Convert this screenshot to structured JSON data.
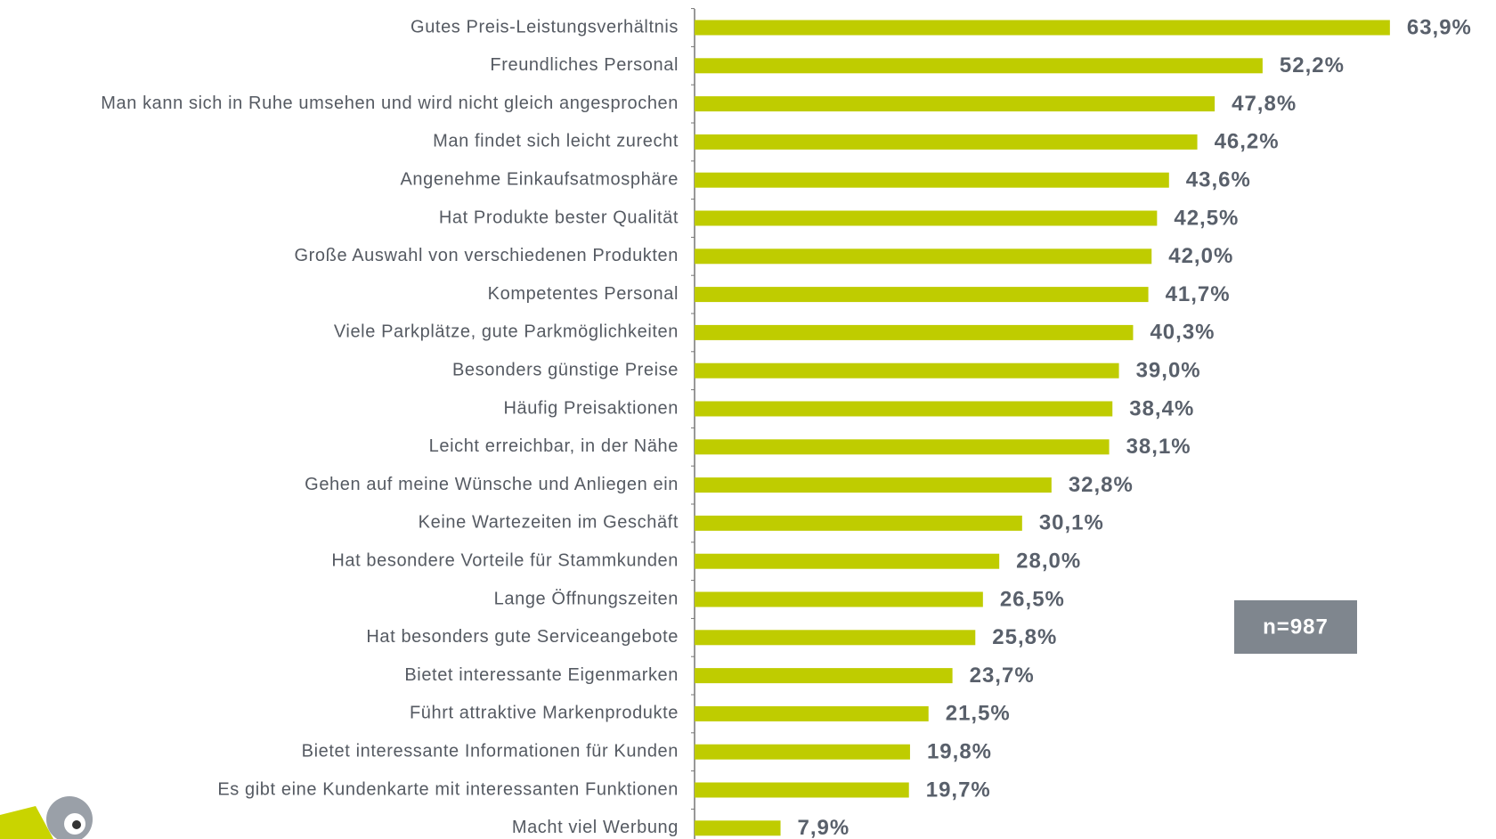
{
  "chart_data": {
    "type": "bar",
    "orientation": "horizontal",
    "color": "#bfcc00",
    "categories": [
      "Gutes Preis-Leistungsverhältnis",
      "Freundliches Personal",
      "Man kann sich in Ruhe umsehen und wird nicht gleich angesprochen",
      "Man findet sich leicht zurecht",
      "Angenehme Einkaufsatmosphäre",
      "Hat Produkte bester Qualität",
      "Große Auswahl von verschiedenen Produkten",
      "Kompetentes Personal",
      "Viele Parkplätze, gute Parkmöglichkeiten",
      "Besonders günstige Preise",
      "Häufig Preisaktionen",
      "Leicht erreichbar, in der Nähe",
      "Gehen auf meine Wünsche und Anliegen ein",
      "Keine Wartezeiten im Geschäft",
      "Hat besondere Vorteile für Stammkunden",
      "Lange Öffnungszeiten",
      "Hat besonders gute Serviceangebote",
      "Bietet interessante Eigenmarken",
      "Führt attraktive Markenprodukte",
      "Bietet interessante Informationen für Kunden",
      "Es gibt eine Kundenkarte mit interessanten Funktionen",
      "Macht viel Werbung"
    ],
    "values": [
      63.9,
      52.2,
      47.8,
      46.2,
      43.6,
      42.5,
      42.0,
      41.7,
      40.3,
      39.0,
      38.4,
      38.1,
      32.8,
      30.1,
      28.0,
      26.5,
      25.8,
      23.7,
      21.5,
      19.8,
      19.7,
      7.9
    ],
    "value_labels": [
      "63,9%",
      "52,2%",
      "47,8%",
      "46,2%",
      "43,6%",
      "42,5%",
      "42,0%",
      "41,7%",
      "40,3%",
      "39,0%",
      "38,4%",
      "38,1%",
      "32,8%",
      "30,1%",
      "28,0%",
      "26,5%",
      "25,8%",
      "23,7%",
      "21,5%",
      "19,8%",
      "19,7%",
      "7,9%"
    ],
    "annotation": "n=987"
  }
}
